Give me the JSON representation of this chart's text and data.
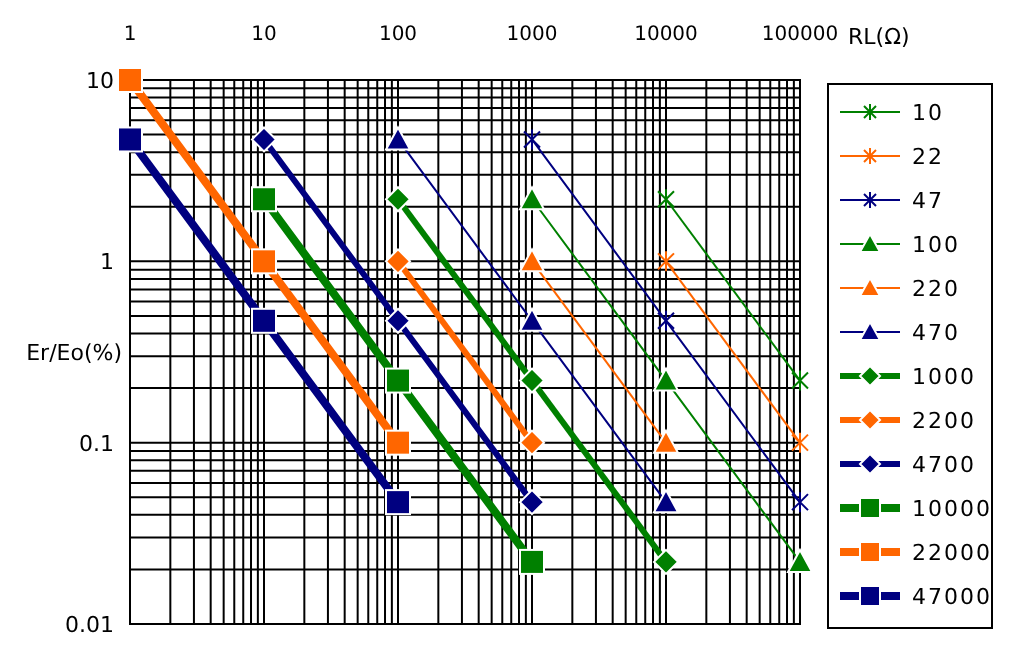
{
  "chart_data": {
    "type": "line",
    "xlabel": "RL(Ω)",
    "ylabel": "Er/Eo(%)",
    "log": "xy",
    "grid": true,
    "legend": "right",
    "xlim": [
      1,
      100000
    ],
    "xticks": [
      1,
      10,
      100,
      1000,
      10000,
      100000
    ],
    "ylim": [
      0.01,
      10
    ],
    "yticks": [
      0.01,
      0.1,
      1,
      10
    ],
    "series": [
      {
        "name": "10",
        "color": "#008000",
        "marker": "cross",
        "x": [
          10000,
          100000
        ],
        "values": [
          2.2,
          0.22
        ]
      },
      {
        "name": "22",
        "color": "#ff6600",
        "marker": "cross",
        "x": [
          10000,
          100000
        ],
        "values": [
          1,
          0.1
        ]
      },
      {
        "name": "47",
        "color": "#000080",
        "marker": "cross",
        "x": [
          1000,
          10000,
          100000
        ],
        "values": [
          4.7,
          0.47,
          0.047
        ]
      },
      {
        "name": "100",
        "color": "#008000",
        "marker": "triangle",
        "x": [
          1000,
          10000,
          100000
        ],
        "values": [
          2.2,
          0.22,
          0.022
        ]
      },
      {
        "name": "220",
        "color": "#ff6600",
        "marker": "triangle",
        "x": [
          1000,
          10000
        ],
        "values": [
          1,
          0.1
        ]
      },
      {
        "name": "470",
        "color": "#000080",
        "marker": "triangle",
        "x": [
          100,
          1000,
          10000
        ],
        "values": [
          4.7,
          0.47,
          0.047
        ]
      },
      {
        "name": "1000",
        "color": "#008000",
        "marker": "diamond",
        "x": [
          100,
          1000,
          10000
        ],
        "values": [
          2.2,
          0.22,
          0.022
        ]
      },
      {
        "name": "2200",
        "color": "#ff6600",
        "marker": "diamond",
        "x": [
          100,
          1000
        ],
        "values": [
          1,
          0.1
        ]
      },
      {
        "name": "4700",
        "color": "#000080",
        "marker": "diamond",
        "x": [
          10,
          100,
          1000
        ],
        "values": [
          4.7,
          0.47,
          0.047
        ]
      },
      {
        "name": "10000",
        "color": "#008000",
        "marker": "square",
        "x": [
          10,
          100,
          1000
        ],
        "values": [
          2.2,
          0.22,
          0.022
        ]
      },
      {
        "name": "22000",
        "color": "#ff6600",
        "marker": "square",
        "x": [
          1,
          10,
          100
        ],
        "values": [
          10,
          1,
          0.1
        ]
      },
      {
        "name": "47000",
        "color": "#000080",
        "marker": "square",
        "x": [
          1,
          10,
          100
        ],
        "values": [
          4.7,
          0.47,
          0.047
        ]
      }
    ]
  }
}
